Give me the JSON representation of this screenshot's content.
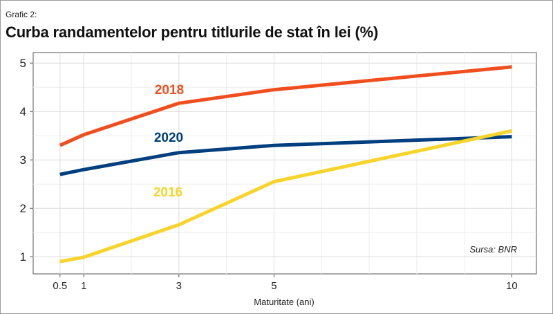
{
  "figure": {
    "label": "Grafic 2:",
    "title": "Curba randamentelor pentru titlurile de stat în lei (%)"
  },
  "chart_data": {
    "type": "line",
    "title": "Curba randamentelor pentru titlurile de stat în lei (%)",
    "xlabel": "Maturitate (ani)",
    "ylabel": "",
    "x": [
      0.5,
      1,
      3,
      5,
      10
    ],
    "x_ticks": [
      0.5,
      1,
      3,
      5,
      10
    ],
    "x_tick_labels": [
      "0.5",
      "1",
      "3",
      "5",
      "10"
    ],
    "y_ticks": [
      1,
      2,
      3,
      4,
      5
    ],
    "y_tick_labels": [
      "1",
      "2",
      "3",
      "4",
      "5"
    ],
    "xlim": [
      0.0,
      10.5
    ],
    "ylim": [
      0.8,
      5.2
    ],
    "grid": true,
    "legend": "inline labels",
    "source": "Sursa: BNR",
    "series": [
      {
        "name": "2018",
        "values": [
          3.3,
          3.52,
          4.17,
          4.45,
          4.92
        ],
        "color": "#f04e1e"
      },
      {
        "name": "2020",
        "values": [
          2.7,
          2.8,
          3.15,
          3.3,
          3.48
        ],
        "color": "#003f7f"
      },
      {
        "name": "2016",
        "values": [
          0.9,
          0.99,
          1.66,
          2.55,
          3.6
        ],
        "color": "#f8d42a"
      }
    ]
  }
}
